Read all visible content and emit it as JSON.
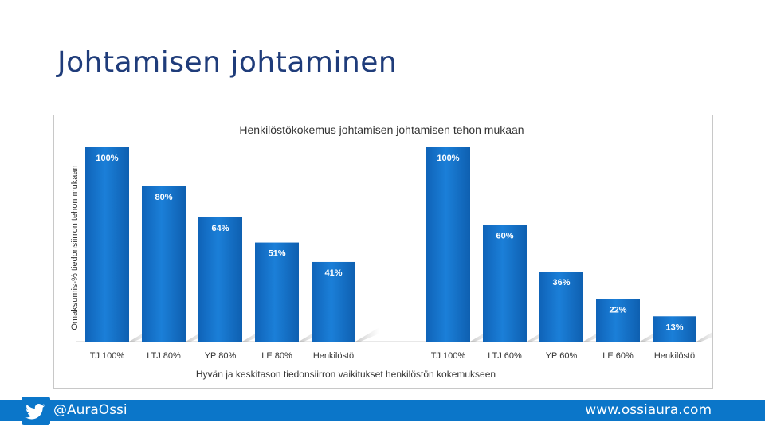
{
  "slide": {
    "title": "Johtamisen johtaminen"
  },
  "footer": {
    "handle": "@AuraOssi",
    "url": "www.ossiaura.com",
    "icon": "twitter-bird-icon"
  },
  "colors": {
    "bar": "#1372cc",
    "footer": "#0b76c9",
    "title": "#1f3c7a"
  },
  "chart_data": {
    "type": "bar",
    "title": "Henkilöstökokemus johtamisen johtamisen tehon mukaan",
    "xlabel": "Hyvän ja keskitason tiedonsiirron vaikitukset henkilöstön kokemukseen",
    "ylabel": "Omaksumis-% tiedonsiirron tehon mukaan",
    "ylim": [
      0,
      100
    ],
    "grid": false,
    "groups": [
      {
        "categories": [
          "TJ 100%",
          "LTJ 80%",
          "YP 80%",
          "LE 80%",
          "Henkilöstö"
        ],
        "values": [
          100,
          80,
          64,
          51,
          41
        ],
        "labels": [
          "100%",
          "80%",
          "64%",
          "51%",
          "41%"
        ]
      },
      {
        "categories": [
          "TJ 100%",
          "LTJ 60%",
          "YP 60%",
          "LE 60%",
          "Henkilöstö"
        ],
        "values": [
          100,
          60,
          36,
          22,
          13
        ],
        "labels": [
          "100%",
          "60%",
          "36%",
          "22%",
          "13%"
        ]
      }
    ]
  }
}
